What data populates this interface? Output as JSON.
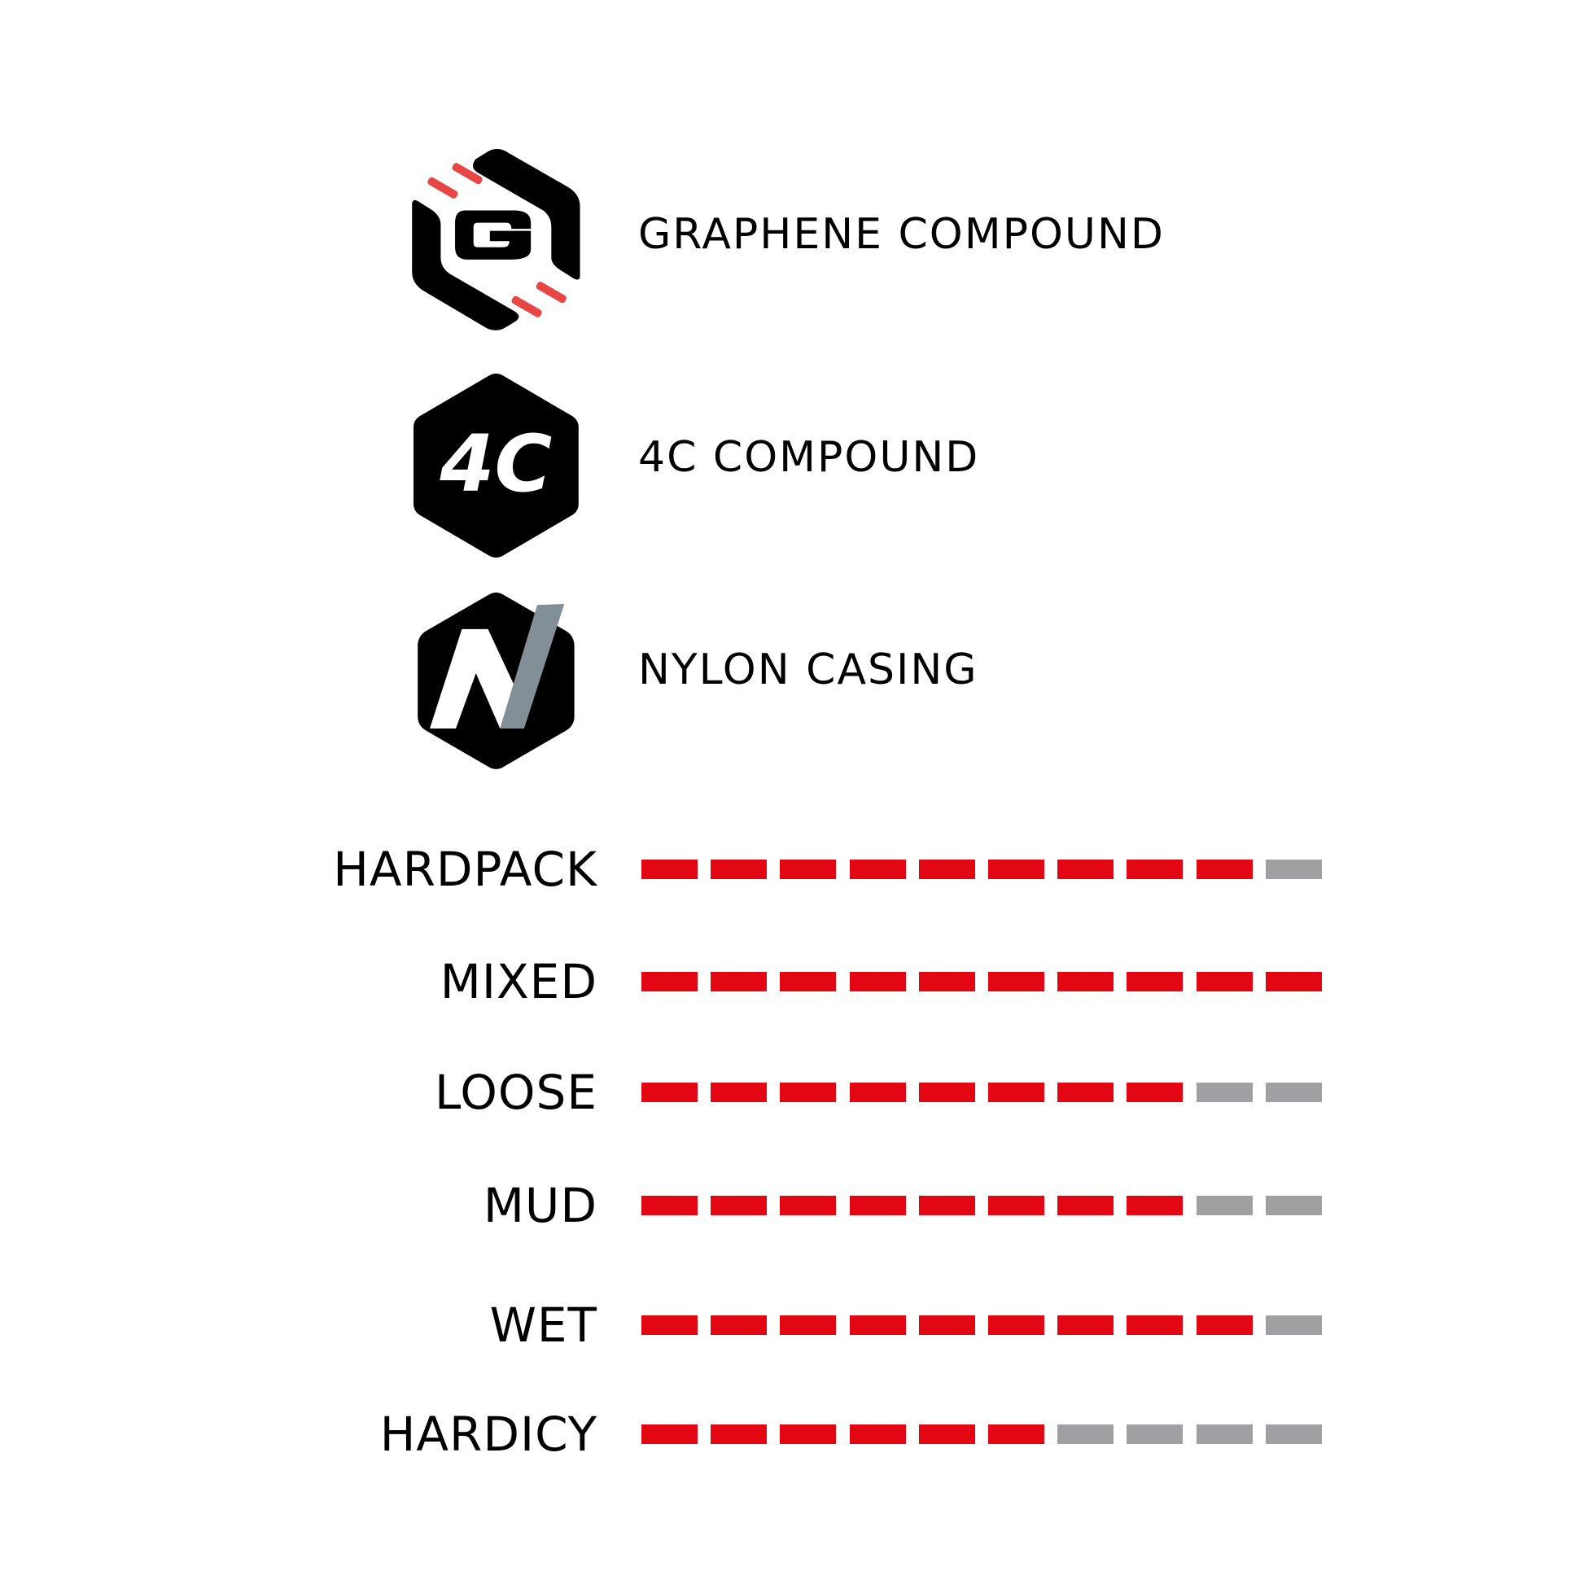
{
  "features": [
    {
      "icon": "graphene-logo-icon",
      "label": "GRAPHENE COMPOUND"
    },
    {
      "icon": "4c-logo-icon",
      "label": "4C COMPOUND",
      "logo_text": "4C"
    },
    {
      "icon": "nylon-logo-icon",
      "label": "NYLON CASING",
      "logo_text": "N"
    }
  ],
  "ratings_max": 10,
  "ratings": [
    {
      "label": "HARDPACK",
      "value": 9
    },
    {
      "label": "MIXED",
      "value": 10
    },
    {
      "label": "LOOSE",
      "value": 8
    },
    {
      "label": "MUD",
      "value": 8
    },
    {
      "label": "WET",
      "value": 9
    },
    {
      "label": "HARDICY",
      "value": 6
    }
  ],
  "colors": {
    "filled": "#e30613",
    "empty": "#a09fa1",
    "logo_red": "#e84545",
    "logo_gray": "#828f96"
  }
}
